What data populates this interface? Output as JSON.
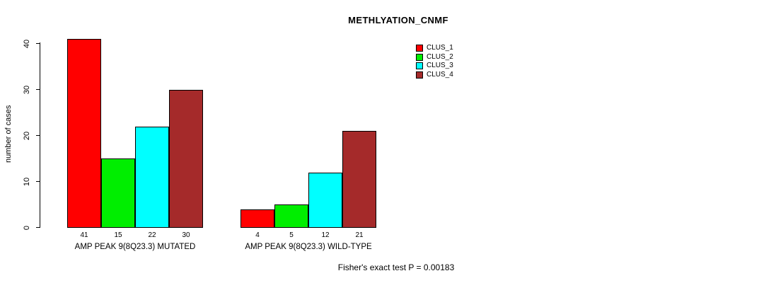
{
  "chart_data": {
    "type": "bar",
    "title": "METHLYATION_CNMF",
    "ylabel": "number of cases",
    "xlabel": "",
    "ylim": [
      0,
      41
    ],
    "yticks": [
      0,
      10,
      20,
      30,
      40
    ],
    "series": [
      "CLUS_1",
      "CLUS_2",
      "CLUS_3",
      "CLUS_4"
    ],
    "colors": [
      "#ff0000",
      "#00ee00",
      "#00ffff",
      "#a52a2a"
    ],
    "groups": [
      {
        "label": "AMP PEAK 9(8Q23.3) MUTATED",
        "values": [
          41,
          15,
          22,
          30
        ]
      },
      {
        "label": "AMP PEAK 9(8Q23.3) WILD-TYPE",
        "values": [
          4,
          5,
          12,
          21
        ]
      }
    ],
    "legend_position": "top-right",
    "grid": false,
    "annotation": "Fisher's exact test P = 0.00183"
  }
}
